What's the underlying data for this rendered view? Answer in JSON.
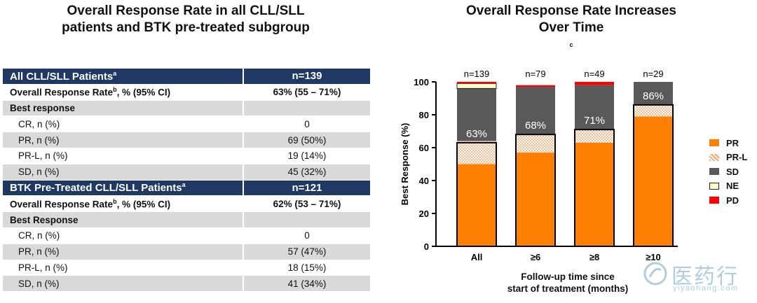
{
  "left_panel": {
    "title_line1": "Overall Response Rate in all CLL/SLL",
    "title_line2": "patients and BTK pre-treated subgroup"
  },
  "table": {
    "section1": {
      "header": "All CLL/SLL Patients",
      "header_sup": "a",
      "n": "n=139",
      "orr_label": "Overall Response Rate",
      "orr_sup": "b",
      "orr_suffix": ", % (95% CI)",
      "orr_value": "63% (55 – 71%)",
      "best_label": "Best response",
      "rows": [
        {
          "label": "CR, n (%)",
          "value": "0"
        },
        {
          "label": "PR, n (%)",
          "value": "69 (50%)"
        },
        {
          "label": "PR-L, n (%)",
          "value": "19 (14%)"
        },
        {
          "label": "SD, n (%)",
          "value": "45 (32%)"
        }
      ]
    },
    "section2": {
      "header": "BTK Pre-Treated CLL/SLL Patients",
      "header_sup": "a",
      "n": "n=121",
      "orr_label": "Overall Response Rate",
      "orr_sup": "b",
      "orr_suffix": ", % (95% CI)",
      "orr_value": "62% (53 – 71%)",
      "best_label": "Best Response",
      "rows": [
        {
          "label": "CR, n (%)",
          "value": "0"
        },
        {
          "label": "PR, n (%)",
          "value": "57 (47%)"
        },
        {
          "label": "PR-L, n (%)",
          "value": "18 (15%)"
        },
        {
          "label": "SD, n (%)",
          "value": "41 (34%)"
        }
      ]
    }
  },
  "right_panel": {
    "title_line1": "Overall Response Rate Increases",
    "title_line2": "Over Time",
    "title_sup": "c",
    "xlabel_line1": "Follow-up time since",
    "xlabel_line2": "start of treatment (months)"
  },
  "chart_data": {
    "type": "bar",
    "stacked": true,
    "categories": [
      "All",
      "≥6",
      "≥8",
      "≥10"
    ],
    "n_labels": [
      "n=139",
      "n=79",
      "n=49",
      "n=29"
    ],
    "orr_labels": [
      "63%",
      "68%",
      "71%",
      "86%"
    ],
    "orr_values": [
      63,
      68,
      71,
      86
    ],
    "series": [
      {
        "name": "PR",
        "color": "#ff8000",
        "values": [
          50,
          57,
          63,
          79
        ]
      },
      {
        "name": "PR-L",
        "color": "#ffc8a0",
        "pattern": "dots",
        "values": [
          14,
          11,
          8,
          7
        ]
      },
      {
        "name": "SD",
        "color": "#595959",
        "values": [
          32,
          29,
          27,
          14
        ]
      },
      {
        "name": "NE",
        "color": "#ffffcc",
        "values": [
          3,
          0,
          0,
          0
        ]
      },
      {
        "name": "PD",
        "color": "#ff0000",
        "values": [
          1,
          1,
          2,
          0
        ]
      }
    ],
    "ylabel": "Best Response (%)",
    "ylim": [
      0,
      100
    ],
    "yticks": [
      "0",
      "20",
      "40",
      "60",
      "80",
      "100"
    ],
    "legend_position": "right"
  },
  "watermark": {
    "cn": "医药行",
    "en": "yiyaohang.com"
  }
}
